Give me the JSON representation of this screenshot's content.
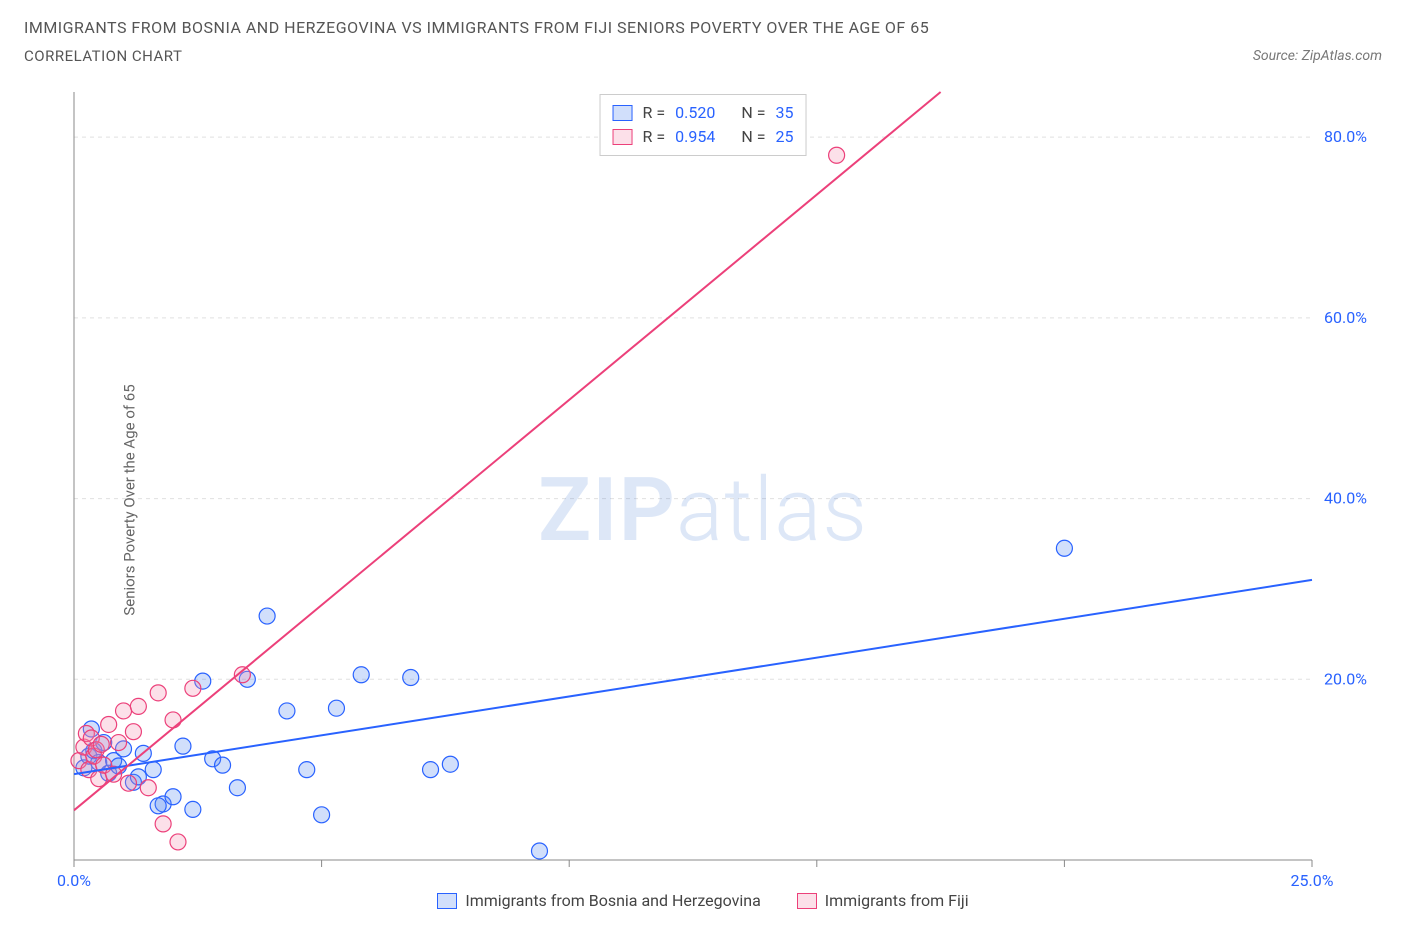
{
  "header": {
    "title": "IMMIGRANTS FROM BOSNIA AND HERZEGOVINA VS IMMIGRANTS FROM FIJI SENIORS POVERTY OVER THE AGE OF 65",
    "subtitle": "CORRELATION CHART",
    "source": "Source: ZipAtlas.com"
  },
  "ylabel": "Seniors Poverty Over the Age of 65",
  "watermark": {
    "bold": "ZIP",
    "light": "atlas"
  },
  "chart": {
    "type": "scatter",
    "background_color": "#ffffff",
    "grid_color": "#e0e0e0",
    "axis_color": "#888888",
    "text_color": "#555555",
    "tick_value_color": "#2962ff",
    "xlim": [
      0,
      25
    ],
    "ylim": [
      0,
      85
    ],
    "x_ticks": [
      0,
      5,
      10,
      15,
      20,
      25
    ],
    "x_tick_labels": [
      "0.0%",
      "",
      "",
      "",
      "",
      "25.0%"
    ],
    "y_ticks": [
      20,
      40,
      60,
      80
    ],
    "y_tick_labels": [
      "20.0%",
      "40.0%",
      "60.0%",
      "80.0%"
    ],
    "marker_radius": 8,
    "marker_fill_opacity": 0.28,
    "line_width": 2,
    "series": [
      {
        "name": "Immigrants from Bosnia and Herzegovina",
        "color": "#5b8def",
        "stroke": "#2962ff",
        "r_value": "0.520",
        "n_value": "35",
        "trend": {
          "x1": 0,
          "y1": 9.5,
          "x2": 25,
          "y2": 31
        },
        "points": [
          [
            0.2,
            10.2
          ],
          [
            0.3,
            11.5
          ],
          [
            0.4,
            12.1
          ],
          [
            0.5,
            10.8
          ],
          [
            0.6,
            13.0
          ],
          [
            0.7,
            9.6
          ],
          [
            0.8,
            11.0
          ],
          [
            0.9,
            10.4
          ],
          [
            1.0,
            12.3
          ],
          [
            1.2,
            8.6
          ],
          [
            1.3,
            9.2
          ],
          [
            1.4,
            11.8
          ],
          [
            1.6,
            10.0
          ],
          [
            1.8,
            6.2
          ],
          [
            2.0,
            7.0
          ],
          [
            2.2,
            12.6
          ],
          [
            2.4,
            5.6
          ],
          [
            2.6,
            19.8
          ],
          [
            2.8,
            11.2
          ],
          [
            3.0,
            10.5
          ],
          [
            3.3,
            8.0
          ],
          [
            3.5,
            20.0
          ],
          [
            3.9,
            27.0
          ],
          [
            4.3,
            16.5
          ],
          [
            4.7,
            10.0
          ],
          [
            5.0,
            5.0
          ],
          [
            5.3,
            16.8
          ],
          [
            5.8,
            20.5
          ],
          [
            6.8,
            20.2
          ],
          [
            7.2,
            10.0
          ],
          [
            7.6,
            10.6
          ],
          [
            9.4,
            1.0
          ],
          [
            20.0,
            34.5
          ],
          [
            1.7,
            6.0
          ],
          [
            0.35,
            14.5
          ]
        ]
      },
      {
        "name": "Immigrants from Fiji",
        "color": "#f48fb1",
        "stroke": "#ec407a",
        "r_value": "0.954",
        "n_value": "25",
        "trend": {
          "x1": 0,
          "y1": 5.5,
          "x2": 17.5,
          "y2": 85
        },
        "points": [
          [
            0.1,
            11.0
          ],
          [
            0.2,
            12.5
          ],
          [
            0.25,
            14.0
          ],
          [
            0.3,
            10.0
          ],
          [
            0.35,
            13.5
          ],
          [
            0.4,
            11.5
          ],
          [
            0.45,
            12.2
          ],
          [
            0.5,
            9.0
          ],
          [
            0.55,
            12.8
          ],
          [
            0.6,
            10.5
          ],
          [
            0.7,
            15.0
          ],
          [
            0.8,
            9.5
          ],
          [
            0.9,
            13.0
          ],
          [
            1.0,
            16.5
          ],
          [
            1.1,
            8.5
          ],
          [
            1.2,
            14.2
          ],
          [
            1.3,
            17.0
          ],
          [
            1.5,
            8.0
          ],
          [
            1.7,
            18.5
          ],
          [
            1.8,
            4.0
          ],
          [
            2.0,
            15.5
          ],
          [
            2.1,
            2.0
          ],
          [
            2.4,
            19.0
          ],
          [
            3.4,
            20.5
          ],
          [
            15.4,
            78.0
          ]
        ]
      }
    ]
  },
  "legend_stats": {
    "r_prefix": "R =",
    "n_prefix": "N ="
  },
  "bottom_legend": [
    {
      "label": "Immigrants from Bosnia and Herzegovina",
      "fill": "#5b8def",
      "stroke": "#2962ff"
    },
    {
      "label": "Immigrants from Fiji",
      "fill": "#f48fb1",
      "stroke": "#ec407a"
    }
  ]
}
